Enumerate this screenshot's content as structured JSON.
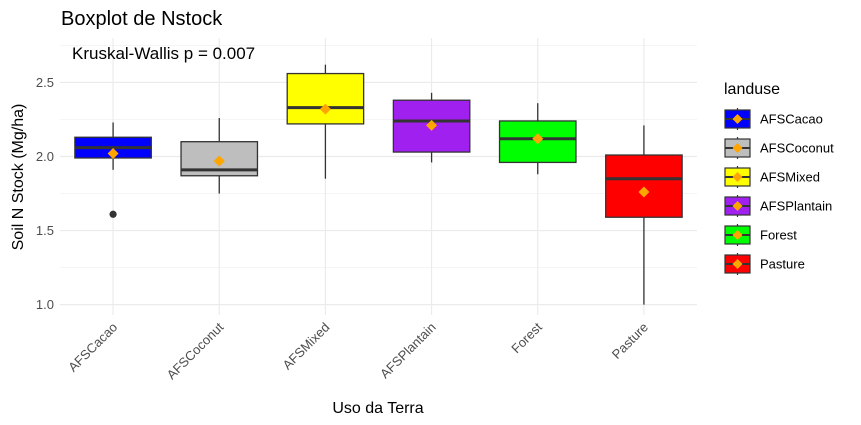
{
  "chart_data": {
    "type": "boxplot",
    "title": "Boxplot de Nstock",
    "annotation": "Kruskal-Wallis p = 0.007",
    "xlabel": "Uso da Terra",
    "ylabel": "Soil N Stock (Mg/ha)",
    "ylim": [
      0.93,
      2.8
    ],
    "yticks": [
      1.0,
      1.5,
      2.0,
      2.5
    ],
    "ytick_labels": [
      "1.0",
      "1.5",
      "2.0",
      "2.5"
    ],
    "grid": true,
    "legend_title": "landuse",
    "legend_position": "right",
    "mean_marker_color": "#FFA500",
    "categories": [
      "AFSCacao",
      "AFSCoconut",
      "AFSMixed",
      "AFSPlantain",
      "Forest",
      "Pasture"
    ],
    "series": [
      {
        "name": "AFSCacao",
        "color": "#0000FF",
        "whisker_low": 1.91,
        "q1": 1.99,
        "median": 2.06,
        "q3": 2.13,
        "whisker_high": 2.23,
        "mean": 2.02,
        "outliers": [
          1.61
        ]
      },
      {
        "name": "AFSCoconut",
        "color": "#BEBEBE",
        "whisker_low": 1.75,
        "q1": 1.87,
        "median": 1.91,
        "q3": 2.1,
        "whisker_high": 2.26,
        "mean": 1.97,
        "outliers": []
      },
      {
        "name": "AFSMixed",
        "color": "#FFFF00",
        "whisker_low": 1.85,
        "q1": 2.22,
        "median": 2.33,
        "q3": 2.56,
        "whisker_high": 2.62,
        "mean": 2.32,
        "outliers": []
      },
      {
        "name": "AFSPlantain",
        "color": "#A020F0",
        "whisker_low": 1.96,
        "q1": 2.03,
        "median": 2.24,
        "q3": 2.38,
        "whisker_high": 2.43,
        "mean": 2.21,
        "outliers": []
      },
      {
        "name": "Forest",
        "color": "#00FF00",
        "whisker_low": 1.88,
        "q1": 1.96,
        "median": 2.12,
        "q3": 2.24,
        "whisker_high": 2.36,
        "mean": 2.12,
        "outliers": []
      },
      {
        "name": "Pasture",
        "color": "#FF0000",
        "whisker_low": 1.0,
        "q1": 1.59,
        "median": 1.85,
        "q3": 2.01,
        "whisker_high": 2.21,
        "mean": 1.76,
        "outliers": []
      }
    ]
  }
}
